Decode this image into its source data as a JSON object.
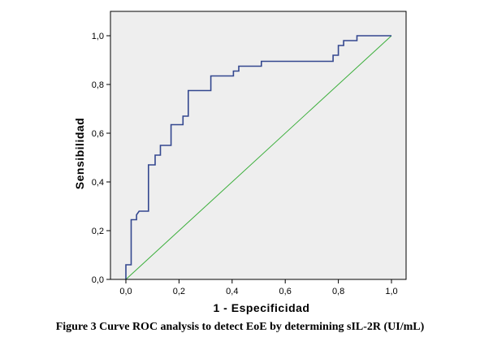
{
  "caption": "Figure 3 Curve ROC analysis to detect EoE by determining sIL-2R (UI/mL)",
  "colors": {
    "plot_background": "#eeeeee",
    "roc_line": "#33478f",
    "reference_line": "#3aae3a",
    "frame": "#000000"
  },
  "chart_data": {
    "type": "line",
    "title": "",
    "xlabel": "1 - Especificidad",
    "ylabel": "Sensibilidad",
    "xlim": [
      0,
      1
    ],
    "ylim": [
      0,
      1
    ],
    "grid": false,
    "x_ticks": [
      0,
      0.2,
      0.4,
      0.6,
      0.8,
      1.0
    ],
    "x_tick_labels": [
      "0,0",
      "0,2",
      "0,4",
      "0,6",
      "0,8",
      "1,0"
    ],
    "y_ticks": [
      0,
      0.2,
      0.4,
      0.6,
      0.8,
      1.0
    ],
    "y_tick_labels": [
      "0,0",
      "0,2",
      "0,4",
      "0,6",
      "0,8",
      "1,0"
    ],
    "series": [
      {
        "role": "roc",
        "color": "#33478f",
        "points": [
          [
            0,
            0
          ],
          [
            0,
            0.06
          ],
          [
            0.02,
            0.06
          ],
          [
            0.02,
            0.245
          ],
          [
            0.04,
            0.245
          ],
          [
            0.04,
            0.265
          ],
          [
            0.05,
            0.28
          ],
          [
            0.085,
            0.28
          ],
          [
            0.085,
            0.47
          ],
          [
            0.11,
            0.47
          ],
          [
            0.11,
            0.51
          ],
          [
            0.13,
            0.51
          ],
          [
            0.13,
            0.55
          ],
          [
            0.17,
            0.55
          ],
          [
            0.17,
            0.635
          ],
          [
            0.215,
            0.635
          ],
          [
            0.215,
            0.67
          ],
          [
            0.235,
            0.67
          ],
          [
            0.235,
            0.775
          ],
          [
            0.32,
            0.775
          ],
          [
            0.32,
            0.835
          ],
          [
            0.405,
            0.835
          ],
          [
            0.405,
            0.855
          ],
          [
            0.425,
            0.855
          ],
          [
            0.425,
            0.875
          ],
          [
            0.51,
            0.875
          ],
          [
            0.51,
            0.895
          ],
          [
            0.78,
            0.895
          ],
          [
            0.78,
            0.92
          ],
          [
            0.8,
            0.92
          ],
          [
            0.8,
            0.96
          ],
          [
            0.82,
            0.96
          ],
          [
            0.82,
            0.98
          ],
          [
            0.87,
            0.98
          ],
          [
            0.87,
            1.0
          ],
          [
            1.0,
            1.0
          ]
        ]
      },
      {
        "role": "reference",
        "color": "#3aae3a",
        "points": [
          [
            0,
            0
          ],
          [
            1,
            1
          ]
        ]
      }
    ]
  }
}
